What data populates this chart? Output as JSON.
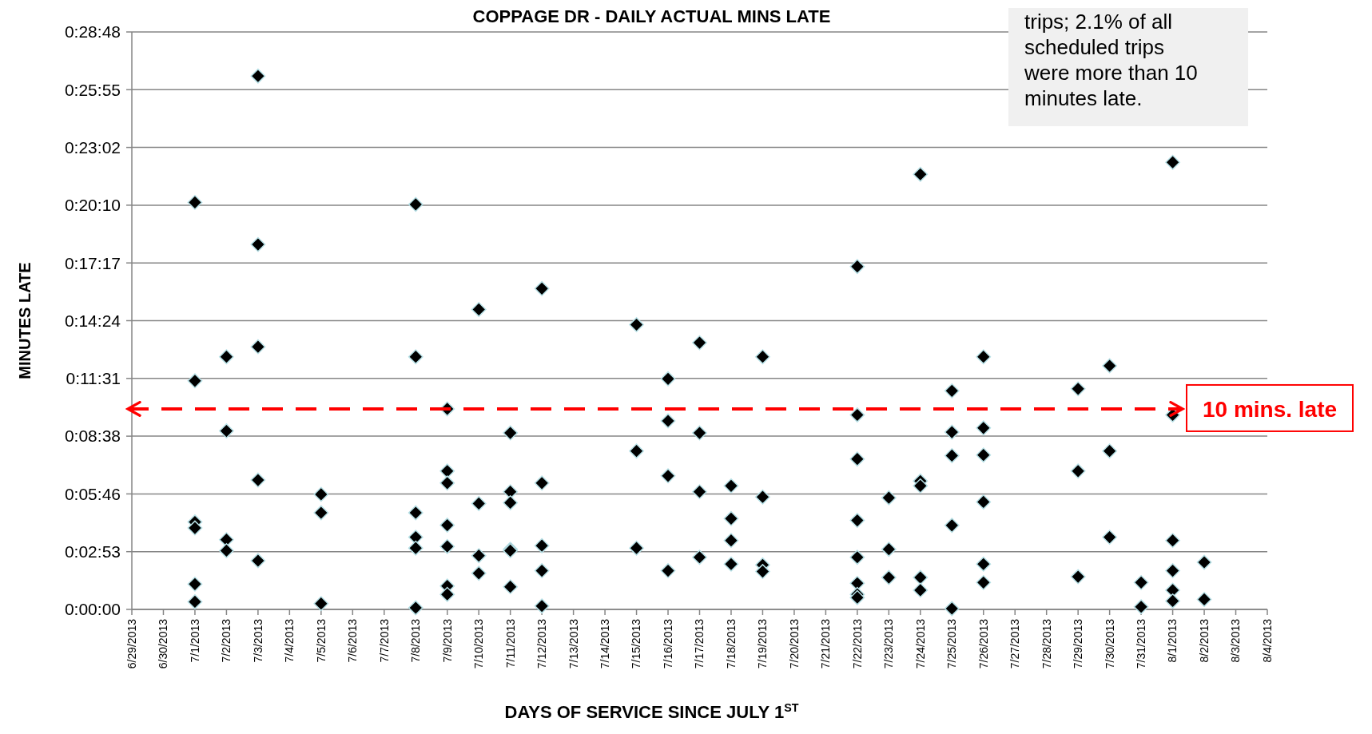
{
  "chart_data": {
    "type": "scatter",
    "title": "COPPAGE DR - DAILY ACTUAL MINS LATE",
    "xlabel": "DAYS OF SERVICE SINCE JULY 1$^{ST}$",
    "ylabel": "MINUTES LATE",
    "annotations": [
      "trips; 2.1% of all scheduled trips were more than 10 minutes late."
    ],
    "series": [
      {
        "color": "#000000",
        "x": [
          "2013-07-01",
          "2013-07-01",
          "2013-07-01",
          "2013-07-01",
          "2013-07-01",
          "2013-07-01",
          "2013-07-02",
          "2013-07-02",
          "2013-07-02",
          "2013-07-02",
          "2013-07-03",
          "2013-07-03",
          "2013-07-03",
          "2013-07-03",
          "2013-07-03",
          "2013-07-05",
          "2013-07-05",
          "2013-07-05",
          "2013-07-08",
          "2013-07-08",
          "2013-07-08",
          "2013-07-08",
          "2013-07-08",
          "2013-07-08",
          "2013-07-09",
          "2013-07-09",
          "2013-07-09",
          "2013-07-09",
          "2013-07-09",
          "2013-07-09",
          "2013-07-09",
          "2013-07-10",
          "2013-07-10",
          "2013-07-10",
          "2013-07-10",
          "2013-07-11",
          "2013-07-11",
          "2013-07-11",
          "2013-07-11",
          "2013-07-11",
          "2013-07-11",
          "2013-07-12",
          "2013-07-12",
          "2013-07-12",
          "2013-07-12",
          "2013-07-12",
          "2013-07-15",
          "2013-07-15",
          "2013-07-15",
          "2013-07-16",
          "2013-07-16",
          "2013-07-16",
          "2013-07-16",
          "2013-07-17",
          "2013-07-17",
          "2013-07-17",
          "2013-07-17",
          "2013-07-18",
          "2013-07-18",
          "2013-07-18",
          "2013-07-18",
          "2013-07-19",
          "2013-07-19",
          "2013-07-19",
          "2013-07-19",
          "2013-07-22",
          "2013-07-22",
          "2013-07-22",
          "2013-07-22",
          "2013-07-22",
          "2013-07-22",
          "2013-07-22",
          "2013-07-22",
          "2013-07-23",
          "2013-07-23",
          "2013-07-23",
          "2013-07-24",
          "2013-07-24",
          "2013-07-24",
          "2013-07-24",
          "2013-07-24",
          "2013-07-25",
          "2013-07-25",
          "2013-07-25",
          "2013-07-25",
          "2013-07-25",
          "2013-07-26",
          "2013-07-26",
          "2013-07-26",
          "2013-07-26",
          "2013-07-26",
          "2013-07-26",
          "2013-07-29",
          "2013-07-29",
          "2013-07-29",
          "2013-07-30",
          "2013-07-30",
          "2013-07-30",
          "2013-07-31",
          "2013-07-31",
          "2013-08-01",
          "2013-08-01",
          "2013-08-01",
          "2013-08-01",
          "2013-08-01",
          "2013-08-01",
          "2013-08-02",
          "2013-08-02"
        ],
        "values": [
          20.3,
          11.4,
          4.36,
          4.06,
          1.26,
          0.38,
          12.6,
          8.9,
          3.48,
          2.93,
          26.6,
          18.2,
          13.1,
          6.45,
          2.43,
          5.74,
          4.82,
          0.29,
          20.2,
          12.6,
          4.82,
          3.6,
          3.06,
          0.08,
          10.0,
          6.9,
          6.3,
          4.2,
          3.14,
          1.17,
          0.75,
          14.96,
          5.28,
          2.68,
          1.8,
          8.8,
          5.87,
          5.32,
          3.0,
          2.93,
          1.13,
          16.0,
          6.3,
          3.18,
          1.93,
          0.17,
          14.2,
          7.9,
          3.06,
          11.5,
          9.4,
          6.66,
          1.93,
          13.3,
          8.8,
          5.87,
          2.6,
          6.16,
          4.53,
          3.44,
          2.26,
          12.6,
          5.61,
          2.22,
          1.89,
          17.1,
          9.7,
          7.5,
          4.44,
          2.6,
          1.3,
          0.75,
          0.59,
          5.57,
          3.0,
          1.59,
          21.7,
          6.4,
          6.16,
          1.59,
          0.96,
          10.9,
          8.84,
          7.67,
          4.19,
          0.04,
          12.6,
          9.05,
          7.7,
          5.36,
          2.26,
          1.34,
          11.0,
          6.9,
          1.63,
          12.15,
          7.9,
          3.6,
          1.34,
          0.13,
          22.3,
          9.7,
          3.44,
          1.93,
          0.96,
          0.42,
          2.35,
          0.5
        ]
      }
    ],
    "marker": "diamond",
    "grid": "y",
    "xlim": [
      "2013-06-29",
      "2013-08-04"
    ],
    "xticks": [
      {
        "value": "2013-06-29",
        "label": "6/29/2013"
      },
      {
        "value": "2013-06-30",
        "label": "6/30/2013"
      },
      {
        "value": "2013-07-01",
        "label": "7/1/2013"
      },
      {
        "value": "2013-07-02",
        "label": "7/2/2013"
      },
      {
        "value": "2013-07-03",
        "label": "7/3/2013"
      },
      {
        "value": "2013-07-04",
        "label": "7/4/2013"
      },
      {
        "value": "2013-07-05",
        "label": "7/5/2013"
      },
      {
        "value": "2013-07-06",
        "label": "7/6/2013"
      },
      {
        "value": "2013-07-07",
        "label": "7/7/2013"
      },
      {
        "value": "2013-07-08",
        "label": "7/8/2013"
      },
      {
        "value": "2013-07-09",
        "label": "7/9/2013"
      },
      {
        "value": "2013-07-10",
        "label": "7/10/2013"
      },
      {
        "value": "2013-07-11",
        "label": "7/11/2013"
      },
      {
        "value": "2013-07-12",
        "label": "7/12/2013"
      },
      {
        "value": "2013-07-13",
        "label": "7/13/2013"
      },
      {
        "value": "2013-07-14",
        "label": "7/14/2013"
      },
      {
        "value": "2013-07-15",
        "label": "7/15/2013"
      },
      {
        "value": "2013-07-16",
        "label": "7/16/2013"
      },
      {
        "value": "2013-07-17",
        "label": "7/17/2013"
      },
      {
        "value": "2013-07-18",
        "label": "7/18/2013"
      },
      {
        "value": "2013-07-19",
        "label": "7/19/2013"
      },
      {
        "value": "2013-07-20",
        "label": "7/20/2013"
      },
      {
        "value": "2013-07-21",
        "label": "7/21/2013"
      },
      {
        "value": "2013-07-22",
        "label": "7/22/2013"
      },
      {
        "value": "2013-07-23",
        "label": "7/23/2013"
      },
      {
        "value": "2013-07-24",
        "label": "7/24/2013"
      },
      {
        "value": "2013-07-25",
        "label": "7/25/2013"
      },
      {
        "value": "2013-07-26",
        "label": "7/26/2013"
      },
      {
        "value": "2013-07-27",
        "label": "7/27/2013"
      },
      {
        "value": "2013-07-28",
        "label": "7/28/2013"
      },
      {
        "value": "2013-07-29",
        "label": "7/29/2013"
      },
      {
        "value": "2013-07-30",
        "label": "7/30/2013"
      },
      {
        "value": "2013-07-31",
        "label": "7/31/2013"
      },
      {
        "value": "2013-08-01",
        "label": "8/1/2013"
      },
      {
        "value": "2013-08-02",
        "label": "8/2/2013"
      },
      {
        "value": "2013-08-03",
        "label": "8/3/2013"
      },
      {
        "value": "2013-08-04",
        "label": "8/4/2013"
      }
    ],
    "ylim": [
      0,
      28.8
    ],
    "yticks": [
      {
        "value": 0,
        "label": "0:00:00"
      },
      {
        "value": 2.88,
        "label": "0:02:53"
      },
      {
        "value": 5.76,
        "label": "0:05:46"
      },
      {
        "value": 8.64,
        "label": "0:08:38"
      },
      {
        "value": 11.52,
        "label": "0:11:31"
      },
      {
        "value": 14.4,
        "label": "0:14:24"
      },
      {
        "value": 17.28,
        "label": "0:17:17"
      },
      {
        "value": 20.16,
        "label": "0:20:10"
      },
      {
        "value": 23.04,
        "label": "0:23:02"
      },
      {
        "value": 25.92,
        "label": "0:25:55"
      },
      {
        "value": 28.8,
        "label": "0:28:48"
      }
    ],
    "ref_lines": [
      {
        "axis": "y",
        "value": 10,
        "label": "10 mins. late",
        "color": "#ff0000",
        "line_style": "dashed"
      }
    ]
  }
}
